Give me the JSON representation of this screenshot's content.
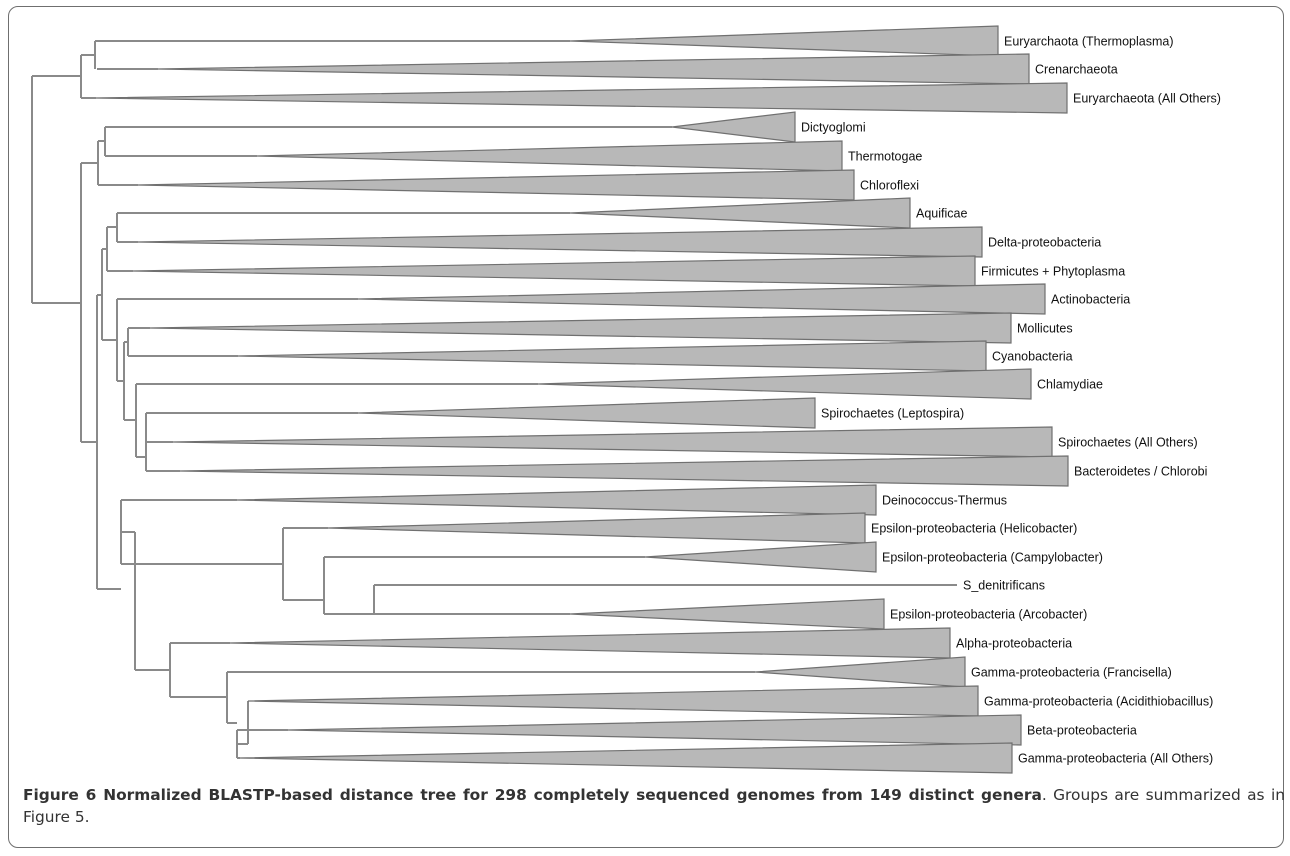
{
  "figure": {
    "caption": {
      "bold": "Figure 6 Normalized BLASTP-based distance tree for 298 completely sequenced genomes from 149 distinct genera",
      "rest": ". Groups are summarized as in Figure 5."
    },
    "colors": {
      "branch": "#8a8a8a",
      "clade_fill": "#b8b8b8",
      "clade_stroke": "#707070"
    },
    "clades": [
      {
        "id": 0,
        "label": "Euryarchaota (Thermoplasma)",
        "type": "wedge"
      },
      {
        "id": 1,
        "label": "Crenarchaeota",
        "type": "wedge"
      },
      {
        "id": 2,
        "label": "Euryarchaeota (All Others)",
        "type": "wedge"
      },
      {
        "id": 3,
        "label": "Dictyoglomi",
        "type": "wedge"
      },
      {
        "id": 4,
        "label": "Thermotogae",
        "type": "wedge"
      },
      {
        "id": 5,
        "label": "Chloroflexi",
        "type": "wedge"
      },
      {
        "id": 6,
        "label": "Aquificae",
        "type": "wedge"
      },
      {
        "id": 7,
        "label": "Delta-proteobacteria",
        "type": "wedge"
      },
      {
        "id": 8,
        "label": "Firmicutes + Phytoplasma",
        "type": "wedge"
      },
      {
        "id": 9,
        "label": "Actinobacteria",
        "type": "wedge"
      },
      {
        "id": 10,
        "label": "Mollicutes",
        "type": "wedge"
      },
      {
        "id": 11,
        "label": "Cyanobacteria",
        "type": "wedge"
      },
      {
        "id": 12,
        "label": "Chlamydiae",
        "type": "wedge"
      },
      {
        "id": 13,
        "label": "Spirochaetes (Leptospira)",
        "type": "wedge"
      },
      {
        "id": 14,
        "label": "Spirochaetes (All Others)",
        "type": "wedge"
      },
      {
        "id": 15,
        "label": "Bacteroidetes / Chlorobi",
        "type": "wedge"
      },
      {
        "id": 16,
        "label": "Deinococcus-Thermus",
        "type": "wedge"
      },
      {
        "id": 17,
        "label": "Epsilon-proteobacteria (Helicobacter)",
        "type": "wedge"
      },
      {
        "id": 18,
        "label": "Epsilon-proteobacteria (Campylobacter)",
        "type": "wedge"
      },
      {
        "id": 19,
        "label": "S_denitrificans",
        "type": "leaf"
      },
      {
        "id": 20,
        "label": "Epsilon-proteobacteria (Arcobacter)",
        "type": "wedge"
      },
      {
        "id": 21,
        "label": "Alpha-proteobacteria",
        "type": "wedge"
      },
      {
        "id": 22,
        "label": "Gamma-proteobacteria (Francisella)",
        "type": "wedge"
      },
      {
        "id": 23,
        "label": "Gamma-proteobacteria (Acidithiobacillus)",
        "type": "wedge"
      },
      {
        "id": 24,
        "label": "Beta-proteobacteria",
        "type": "wedge"
      },
      {
        "id": 25,
        "label": "Gamma-proteobacteria (All Others)",
        "type": "wedge"
      }
    ]
  }
}
